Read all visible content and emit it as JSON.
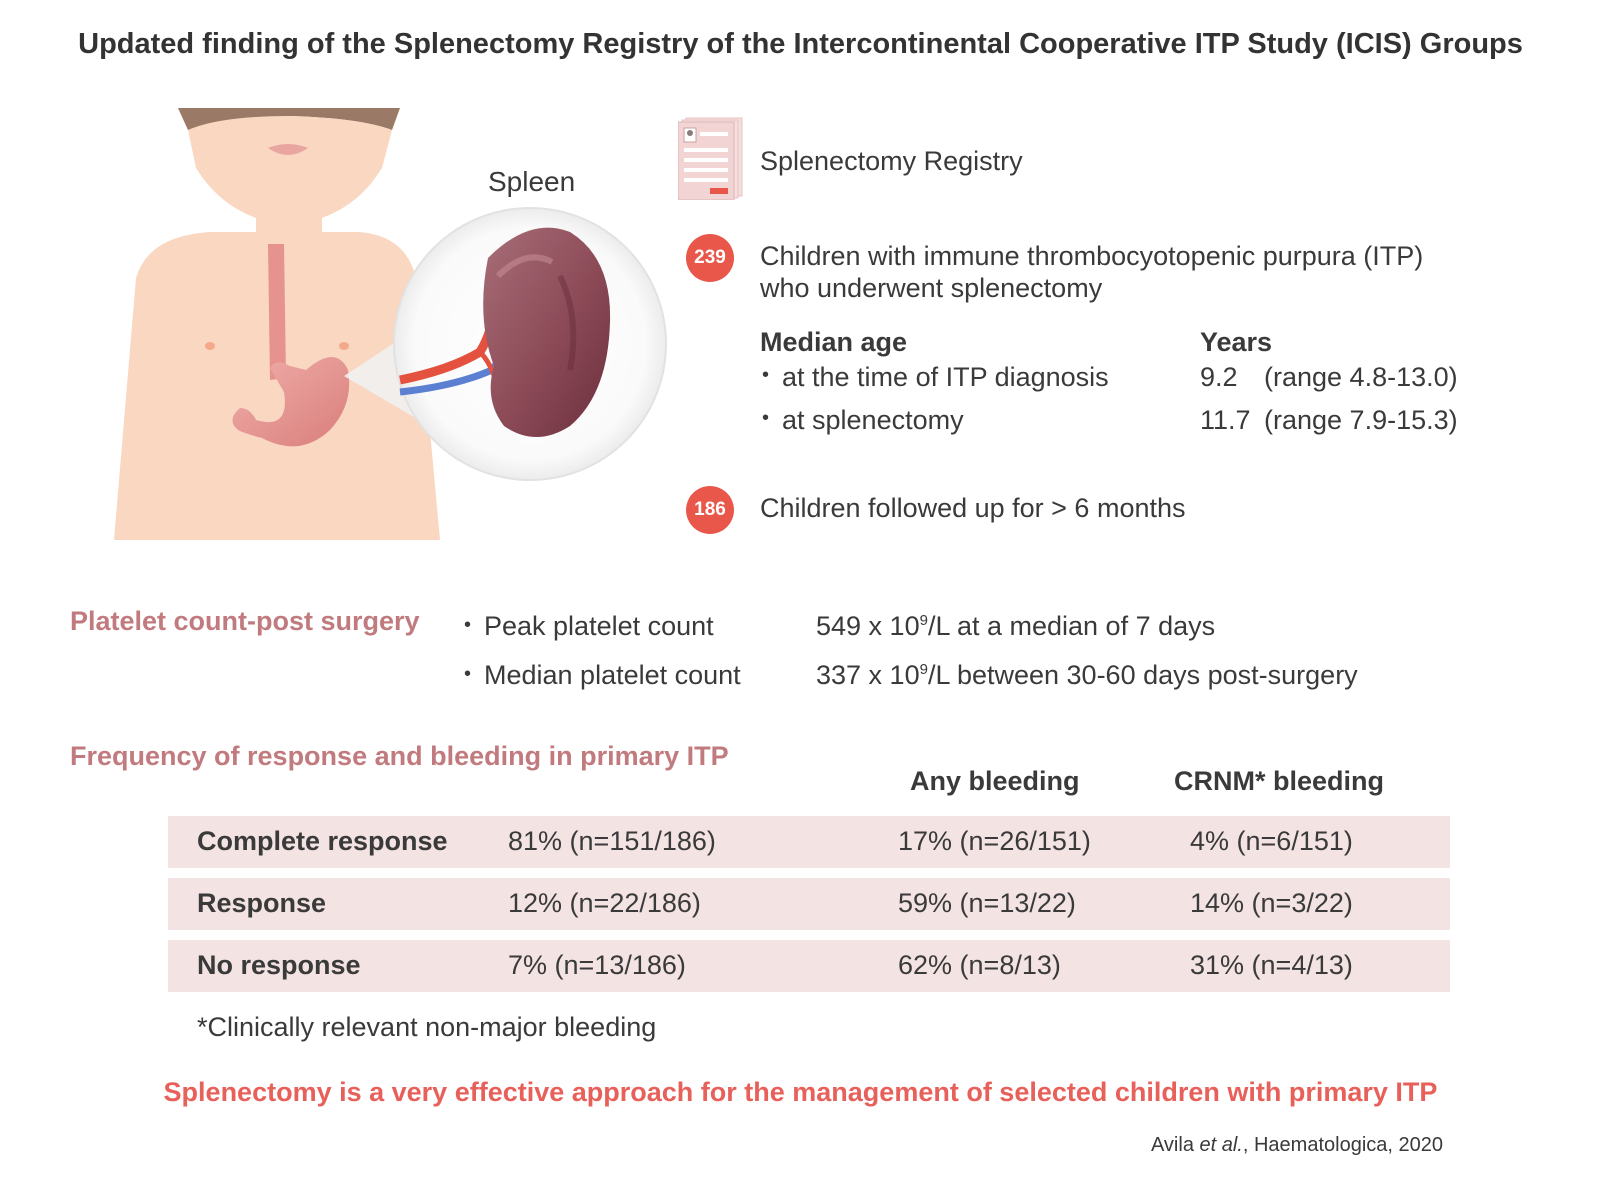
{
  "title": "Updated finding of the Splenectomy Registry of the Intercontinental Cooperative ITP Study (ICIS) Groups",
  "illustration": {
    "organ_label": "Spleen"
  },
  "registry": {
    "label": "Splenectomy Registry",
    "cohort1": {
      "count": "239",
      "line1": "Children with immune thrombocyotopenic purpura (ITP)",
      "line2": "who underwent splenectomy"
    },
    "median_age": {
      "header": "Median age",
      "years_header": "Years",
      "rows": [
        {
          "label": "at the time of ITP diagnosis",
          "value": "9.2",
          "range": "(range 4.8-13.0)"
        },
        {
          "label": "at splenectomy",
          "value": "11.7",
          "range": "(range 7.9-15.3)"
        }
      ]
    },
    "cohort2": {
      "count": "186",
      "text": "Children followed up for > 6 months"
    }
  },
  "platelet": {
    "heading": "Platelet count-post surgery",
    "rows": [
      {
        "label": "Peak platelet count",
        "value_pre": "549 x 10",
        "value_sup": "9",
        "value_post": "/L at a median of 7 days"
      },
      {
        "label": "Median platelet count",
        "value_pre": "337 x 10",
        "value_sup": "9",
        "value_post": "/L between 30-60 days post-surgery"
      }
    ]
  },
  "frequency": {
    "heading": "Frequency of response and bleeding in primary ITP",
    "col_any": "Any bleeding",
    "col_crnm": "CRNM* bleeding",
    "rows": [
      {
        "label": "Complete response",
        "pct": "81% (n=151/186)",
        "any": "17% (n=26/151)",
        "crnm": "4% (n=6/151)"
      },
      {
        "label": "Response",
        "pct": "12% (n=22/186)",
        "any": "59% (n=13/22)",
        "crnm": "14% (n=3/22)"
      },
      {
        "label": "No response",
        "pct": "7% (n=13/186)",
        "any": "62% (n=8/13)",
        "crnm": "31% (n=4/13)"
      }
    ],
    "footnote": "*Clinically relevant non-major bleeding"
  },
  "conclusion": "Splenectomy is a very effective approach for the management of selected children with primary ITP",
  "citation": {
    "authors": "Avila ",
    "etal": "et al.",
    "rest": ", Haematologica, 2020"
  },
  "colors": {
    "accent": "#e8574a",
    "section": "#c17b7f",
    "row_bg": "#f3e3e3",
    "skin": "#f9d7c1"
  }
}
